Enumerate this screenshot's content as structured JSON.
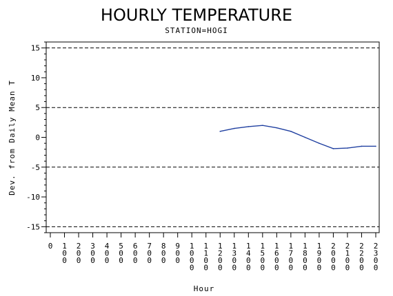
{
  "chart_data": {
    "type": "line",
    "title": "HOURLY TEMPERATURE",
    "subtitle": "STATION=HOGI",
    "xlabel": "Hour",
    "ylabel": "Dev. from Daily Mean T",
    "x_ticks": [
      "0",
      "100",
      "200",
      "300",
      "400",
      "500",
      "600",
      "700",
      "800",
      "900",
      "1000",
      "1100",
      "1200",
      "1300",
      "1400",
      "1500",
      "1600",
      "1700",
      "1800",
      "1900",
      "2000",
      "2100",
      "2200",
      "2300"
    ],
    "xlim": [
      0,
      2300
    ],
    "ylim": [
      -16,
      16
    ],
    "y_ticks": [
      -15,
      -10,
      -5,
      0,
      5,
      10,
      15
    ],
    "reference_lines": [
      -15,
      -5,
      5,
      15
    ],
    "series": [
      {
        "x": [
          1200,
          1300,
          1400,
          1500,
          1600,
          1700,
          1800,
          1900,
          2000,
          2100,
          2200,
          2300
        ],
        "values": [
          1.0,
          1.5,
          1.8,
          2.0,
          1.6,
          1.0,
          0.0,
          -1.0,
          -1.9,
          -1.8,
          -1.5,
          -1.5
        ],
        "color": "#1f3fa0"
      }
    ],
    "grid": false
  }
}
